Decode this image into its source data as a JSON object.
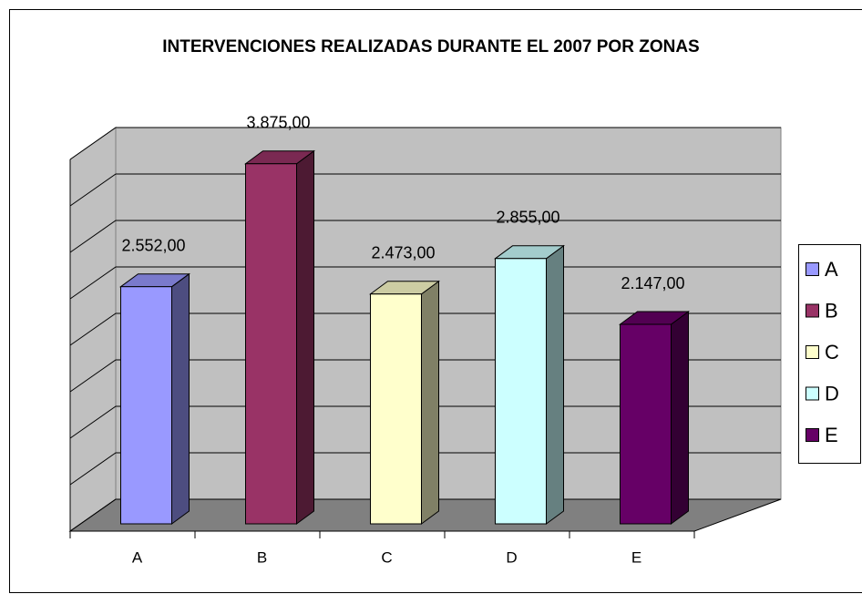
{
  "chart_data": {
    "type": "bar3d",
    "title": "INTERVENCIONES REALIZADAS DURANTE EL 2007 POR ZONAS",
    "categories": [
      "A",
      "B",
      "C",
      "D",
      "E"
    ],
    "values": [
      2552,
      3875,
      2473,
      2855,
      2147
    ],
    "value_labels": [
      "2.552,00",
      "3.875,00",
      "2.473,00",
      "2.855,00",
      "2.147,00"
    ],
    "colors": [
      "#9999ff",
      "#993366",
      "#ffffcc",
      "#ccffff",
      "#660066"
    ],
    "ylim": [
      0,
      4000
    ],
    "yticks": [
      0,
      500,
      1000,
      1500,
      2000,
      2500,
      3000,
      3500,
      4000
    ],
    "grid": true,
    "legend": "right"
  }
}
